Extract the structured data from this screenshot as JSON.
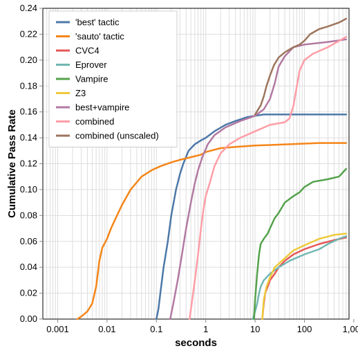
{
  "chart_data": {
    "type": "line",
    "xlabel": "seconds",
    "ylabel": "Cumulative Pass Rate",
    "xscale": "log",
    "xlim": [
      0.0005,
      800
    ],
    "ylim": [
      0,
      0.24
    ],
    "grid": true,
    "legend_position": "top-left",
    "x_ticks": [
      0.001,
      0.01,
      0.1,
      1,
      10,
      100,
      1000
    ],
    "x_tick_labels": [
      "0.001",
      "0.01",
      "0.1",
      "1",
      "10",
      "100",
      "1,000"
    ],
    "y_ticks": [
      0,
      0.02,
      0.04,
      0.06,
      0.08,
      0.1,
      0.12,
      0.14,
      0.16,
      0.18,
      0.2,
      0.22,
      0.24
    ],
    "y_tick_labels": [
      "0.00",
      "0.02",
      "0.04",
      "0.06",
      "0.08",
      "0.10",
      "0.12",
      "0.14",
      "0.16",
      "0.18",
      "0.20",
      "0.22",
      "0.24"
    ],
    "series": [
      {
        "name": "'best' tactic",
        "color": "#4c78a8",
        "points": [
          [
            0.1,
            0
          ],
          [
            0.11,
            0.008
          ],
          [
            0.12,
            0.02
          ],
          [
            0.14,
            0.04
          ],
          [
            0.17,
            0.06
          ],
          [
            0.2,
            0.08
          ],
          [
            0.25,
            0.1
          ],
          [
            0.3,
            0.112
          ],
          [
            0.35,
            0.12
          ],
          [
            0.45,
            0.13
          ],
          [
            0.6,
            0.135
          ],
          [
            0.8,
            0.138
          ],
          [
            1,
            0.14
          ],
          [
            1.5,
            0.145
          ],
          [
            2.5,
            0.15
          ],
          [
            4,
            0.153
          ],
          [
            7,
            0.156
          ],
          [
            10,
            0.157
          ],
          [
            15,
            0.158
          ],
          [
            50,
            0.158
          ],
          [
            700,
            0.158
          ]
        ]
      },
      {
        "name": "'sauto' tactic",
        "color": "#f58518",
        "points": [
          [
            0.0025,
            0
          ],
          [
            0.003,
            0.002
          ],
          [
            0.004,
            0.006
          ],
          [
            0.005,
            0.012
          ],
          [
            0.006,
            0.025
          ],
          [
            0.007,
            0.045
          ],
          [
            0.008,
            0.055
          ],
          [
            0.01,
            0.062
          ],
          [
            0.012,
            0.07
          ],
          [
            0.015,
            0.078
          ],
          [
            0.02,
            0.088
          ],
          [
            0.03,
            0.1
          ],
          [
            0.05,
            0.11
          ],
          [
            0.08,
            0.115
          ],
          [
            0.12,
            0.118
          ],
          [
            0.2,
            0.121
          ],
          [
            0.3,
            0.123
          ],
          [
            0.5,
            0.125
          ],
          [
            0.8,
            0.127
          ],
          [
            1,
            0.129
          ],
          [
            2,
            0.132
          ],
          [
            4,
            0.133
          ],
          [
            10,
            0.134
          ],
          [
            50,
            0.135
          ],
          [
            200,
            0.136
          ],
          [
            700,
            0.136
          ]
        ]
      },
      {
        "name": "CVC4",
        "color": "#e45756",
        "points": [
          [
            14,
            0
          ],
          [
            15,
            0.012
          ],
          [
            16,
            0.02
          ],
          [
            18,
            0.025
          ],
          [
            20,
            0.03
          ],
          [
            25,
            0.035
          ],
          [
            30,
            0.04
          ],
          [
            40,
            0.045
          ],
          [
            60,
            0.05
          ],
          [
            100,
            0.054
          ],
          [
            200,
            0.058
          ],
          [
            400,
            0.061
          ],
          [
            700,
            0.063
          ]
        ]
      },
      {
        "name": "Eprover",
        "color": "#72b7b2",
        "points": [
          [
            9,
            0
          ],
          [
            10,
            0.006
          ],
          [
            11,
            0.012
          ],
          [
            12,
            0.02
          ],
          [
            13,
            0.025
          ],
          [
            15,
            0.03
          ],
          [
            20,
            0.035
          ],
          [
            30,
            0.04
          ],
          [
            50,
            0.045
          ],
          [
            100,
            0.05
          ],
          [
            200,
            0.054
          ],
          [
            300,
            0.058
          ],
          [
            500,
            0.062
          ],
          [
            700,
            0.064
          ]
        ]
      },
      {
        "name": "Vampire",
        "color": "#54a24b",
        "points": [
          [
            9.5,
            0
          ],
          [
            10,
            0.015
          ],
          [
            11,
            0.035
          ],
          [
            12,
            0.05
          ],
          [
            13,
            0.058
          ],
          [
            15,
            0.062
          ],
          [
            18,
            0.066
          ],
          [
            20,
            0.07
          ],
          [
            25,
            0.078
          ],
          [
            30,
            0.082
          ],
          [
            40,
            0.09
          ],
          [
            60,
            0.095
          ],
          [
            80,
            0.098
          ],
          [
            100,
            0.102
          ],
          [
            150,
            0.106
          ],
          [
            300,
            0.108
          ],
          [
            500,
            0.11
          ],
          [
            700,
            0.116
          ]
        ]
      },
      {
        "name": "Z3",
        "color": "#eeca3b",
        "points": [
          [
            14,
            0
          ],
          [
            15,
            0.015
          ],
          [
            17,
            0.025
          ],
          [
            20,
            0.032
          ],
          [
            25,
            0.04
          ],
          [
            40,
            0.047
          ],
          [
            60,
            0.053
          ],
          [
            100,
            0.057
          ],
          [
            200,
            0.062
          ],
          [
            400,
            0.065
          ],
          [
            700,
            0.066
          ]
        ]
      },
      {
        "name": "best+vampire",
        "color": "#b279a2",
        "points": [
          [
            0.19,
            0
          ],
          [
            0.22,
            0.012
          ],
          [
            0.27,
            0.03
          ],
          [
            0.33,
            0.05
          ],
          [
            0.4,
            0.07
          ],
          [
            0.5,
            0.09
          ],
          [
            0.6,
            0.105
          ],
          [
            0.7,
            0.115
          ],
          [
            0.85,
            0.125
          ],
          [
            1.1,
            0.135
          ],
          [
            1.5,
            0.142
          ],
          [
            2.5,
            0.148
          ],
          [
            5,
            0.153
          ],
          [
            10,
            0.157
          ],
          [
            15,
            0.162
          ],
          [
            20,
            0.17
          ],
          [
            25,
            0.182
          ],
          [
            30,
            0.195
          ],
          [
            40,
            0.203
          ],
          [
            60,
            0.21
          ],
          [
            100,
            0.212
          ],
          [
            300,
            0.214
          ],
          [
            700,
            0.216
          ]
        ]
      },
      {
        "name": "combined",
        "color": "#ff9da6",
        "points": [
          [
            0.47,
            0
          ],
          [
            0.52,
            0.012
          ],
          [
            0.6,
            0.03
          ],
          [
            0.7,
            0.05
          ],
          [
            0.8,
            0.07
          ],
          [
            0.9,
            0.085
          ],
          [
            1,
            0.095
          ],
          [
            1.2,
            0.105
          ],
          [
            1.5,
            0.118
          ],
          [
            2,
            0.128
          ],
          [
            3,
            0.135
          ],
          [
            5,
            0.14
          ],
          [
            10,
            0.145
          ],
          [
            20,
            0.15
          ],
          [
            40,
            0.152
          ],
          [
            50,
            0.155
          ],
          [
            60,
            0.165
          ],
          [
            70,
            0.18
          ],
          [
            80,
            0.192
          ],
          [
            100,
            0.2
          ],
          [
            150,
            0.205
          ],
          [
            300,
            0.21
          ],
          [
            700,
            0.218
          ]
        ]
      },
      {
        "name": "combined (unscaled)",
        "color": "#9d755d",
        "points": [
          [
            10,
            0.158
          ],
          [
            13,
            0.165
          ],
          [
            15,
            0.172
          ],
          [
            17,
            0.18
          ],
          [
            20,
            0.188
          ],
          [
            24,
            0.196
          ],
          [
            30,
            0.202
          ],
          [
            40,
            0.206
          ],
          [
            60,
            0.21
          ],
          [
            80,
            0.212
          ],
          [
            100,
            0.215
          ],
          [
            130,
            0.22
          ],
          [
            200,
            0.224
          ],
          [
            300,
            0.226
          ],
          [
            500,
            0.229
          ],
          [
            700,
            0.232
          ]
        ]
      }
    ]
  }
}
